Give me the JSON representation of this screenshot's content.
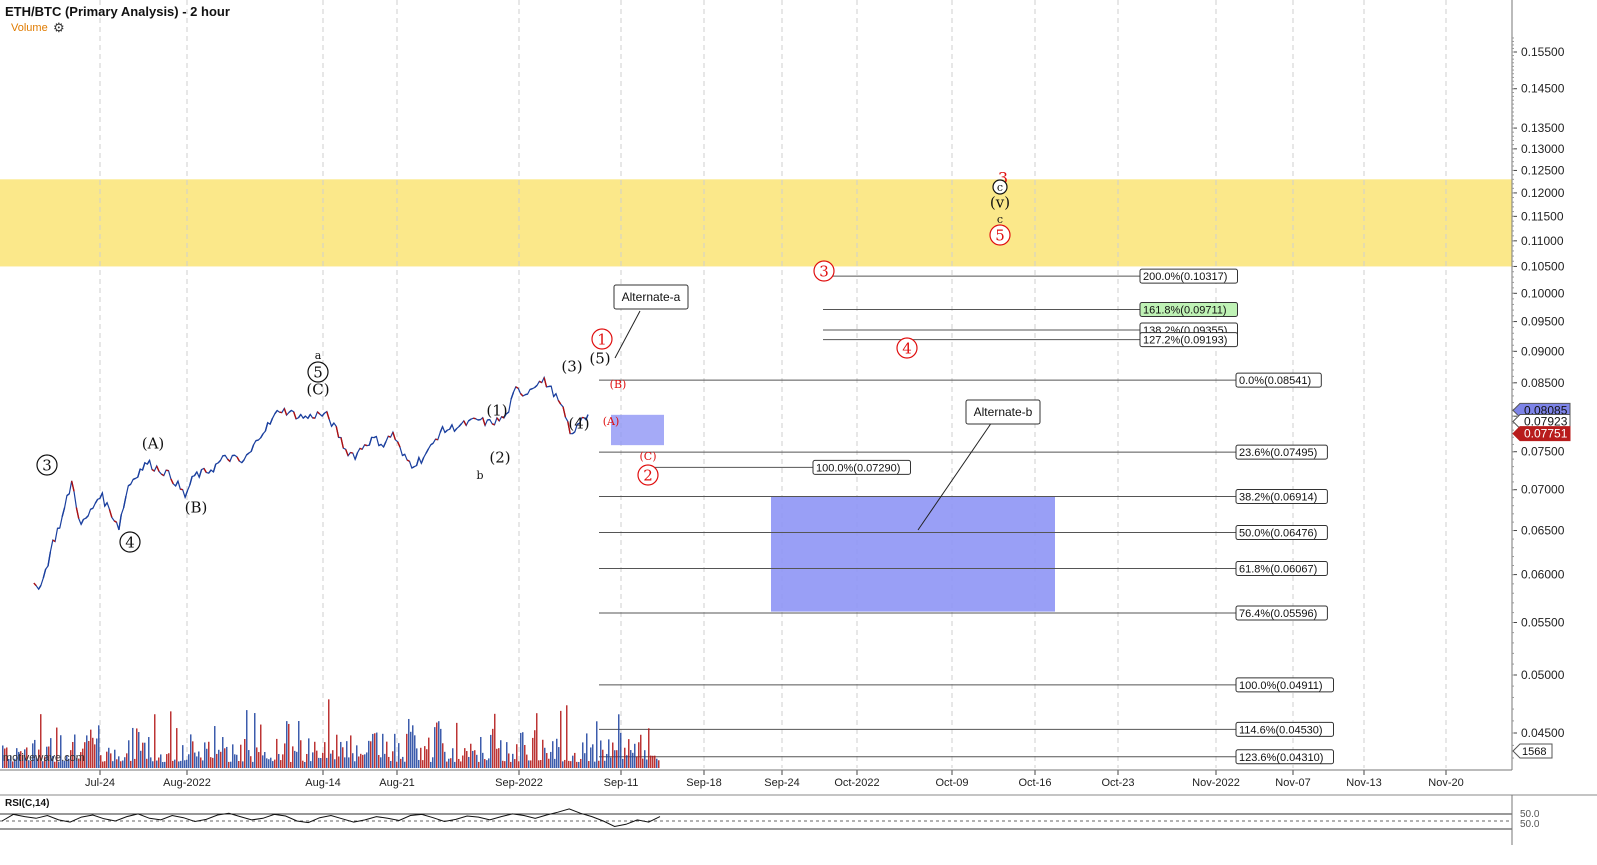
{
  "title": "ETH/BTC (Primary Analysis) - 2 hour",
  "volume_label": "Volume",
  "gear_icon": "gear-icon",
  "watermark": "motivewave.com",
  "rsi_label": "RSI(C,14)",
  "colors": {
    "up": "#1a3f9e",
    "down": "#b01010",
    "target_zone": "#fbe88a",
    "box": "#8e95f5",
    "red_label": "#e01010",
    "price_current": "#7d84e8",
    "price_alt1": "#b81c1c"
  },
  "chart_data": {
    "type": "line",
    "title": "ETH/BTC (Primary Analysis) - 2 hour",
    "ylabel": "",
    "xlabel": "",
    "log_scale": true,
    "ylim": [
      0.0425,
      0.165
    ],
    "x_ticks": [
      "Jul-24",
      "Aug-2022",
      "Aug-14",
      "Aug-21",
      "Sep-2022",
      "Sep-11",
      "Sep-18",
      "Sep-24",
      "Oct-2022",
      "Oct-09",
      "Oct-16",
      "Oct-23",
      "Nov-2022",
      "Nov-07",
      "Nov-13",
      "Nov-20"
    ],
    "y_ticks": [
      "0.15500",
      "0.14500",
      "0.13500",
      "0.13000",
      "0.12500",
      "0.12000",
      "0.11500",
      "0.11000",
      "0.10500",
      "0.10000",
      "0.09500",
      "0.09000",
      "0.08500",
      "0.08000",
      "0.07500",
      "0.07000",
      "0.06500",
      "0.06000",
      "0.05500",
      "0.05000",
      "0.04500"
    ],
    "price_markers": [
      {
        "label": "0.08085",
        "value": 0.08085,
        "kind": "current"
      },
      {
        "label": "0.07923",
        "value": 0.07923,
        "kind": "plain"
      },
      {
        "label": "0.07751",
        "value": 0.07751,
        "kind": "alt"
      }
    ],
    "vol_scale_label": "1568",
    "series": [
      {
        "x": [
          "07-17",
          "07-18",
          "07-19",
          "07-20",
          "07-21",
          "07-22",
          "07-23",
          "07-24",
          "07-25",
          "07-26",
          "07-27",
          "07-28",
          "07-29",
          "07-30",
          "07-31",
          "08-01",
          "08-02",
          "08-03",
          "08-04",
          "08-05",
          "08-06",
          "08-07",
          "08-08",
          "08-09",
          "08-10",
          "08-11",
          "08-12",
          "08-13",
          "08-14",
          "08-15",
          "08-16",
          "08-17",
          "08-18",
          "08-19",
          "08-20",
          "08-21",
          "08-22",
          "08-23",
          "08-24",
          "08-25",
          "08-26",
          "08-27",
          "08-28",
          "08-29",
          "08-30",
          "08-31",
          "09-01",
          "09-02",
          "09-03",
          "09-04",
          "09-05",
          "09-06",
          "09-07",
          "09-08",
          "09-09",
          "09-10",
          "09-11",
          "09-12",
          "09-13"
        ],
        "y": [
          0.0585,
          0.0595,
          0.0635,
          0.0665,
          0.071,
          0.0655,
          0.0672,
          0.0695,
          0.0675,
          0.0655,
          0.0705,
          0.0722,
          0.0735,
          0.0728,
          0.0722,
          0.071,
          0.0692,
          0.0718,
          0.0722,
          0.0728,
          0.074,
          0.0742,
          0.0735,
          0.075,
          0.0775,
          0.079,
          0.081,
          0.0806,
          0.08,
          0.0798,
          0.0803,
          0.0801,
          0.078,
          0.0752,
          0.0745,
          0.076,
          0.0768,
          0.076,
          0.0776,
          0.0745,
          0.0733,
          0.074,
          0.0755,
          0.0778,
          0.0782,
          0.0786,
          0.079,
          0.0795,
          0.079,
          0.0793,
          0.08,
          0.084,
          0.0833,
          0.0848,
          0.0853,
          0.0835,
          0.0808,
          0.077,
          0.08
        ]
      }
    ]
  },
  "zones": {
    "target": {
      "from": 0.105,
      "to": 0.123
    },
    "small_box": {
      "from": 0.0759,
      "to": 0.0802
    },
    "big_box": {
      "from": 0.0561,
      "to": 0.0691
    }
  },
  "fib_lines": [
    {
      "label": "200.0%(0.10317)",
      "value": 0.10317,
      "tone": "plain"
    },
    {
      "label": "161.8%(0.09711)",
      "value": 0.09711,
      "tone": "green"
    },
    {
      "label": "138.2%(0.09355)",
      "value": 0.09355,
      "tone": "plain"
    },
    {
      "label": "127.2%(0.09193)",
      "value": 0.09193,
      "tone": "plain"
    },
    {
      "label": "0.0%(0.08541)",
      "value": 0.08541,
      "tone": "plain"
    },
    {
      "label": "23.6%(0.07495)",
      "value": 0.07495,
      "tone": "plain"
    },
    {
      "label": "100.0%(0.07290)",
      "value": 0.0729,
      "tone": "plain"
    },
    {
      "label": "38.2%(0.06914)",
      "value": 0.06914,
      "tone": "plain"
    },
    {
      "label": "50.0%(0.06476)",
      "value": 0.06476,
      "tone": "plain"
    },
    {
      "label": "61.8%(0.06067)",
      "value": 0.06067,
      "tone": "plain"
    },
    {
      "label": "76.4%(0.05596)",
      "value": 0.05596,
      "tone": "plain"
    },
    {
      "label": "100.0%(0.04911)",
      "value": 0.04911,
      "tone": "plain"
    },
    {
      "label": "114.6%(0.04530)",
      "value": 0.0453,
      "tone": "plain"
    },
    {
      "label": "123.6%(0.04310)",
      "value": 0.0431,
      "tone": "plain"
    }
  ],
  "callouts": [
    {
      "label": "Alternate-a"
    },
    {
      "label": "Alternate-b"
    }
  ],
  "wave_labels": [
    {
      "text": "3",
      "style": "circle",
      "color": "black"
    },
    {
      "text": "4",
      "style": "circle",
      "color": "black"
    },
    {
      "text": "(A)",
      "style": "plain",
      "color": "black"
    },
    {
      "text": "(B)",
      "style": "plain",
      "color": "black"
    },
    {
      "text": "a",
      "style": "small",
      "color": "black"
    },
    {
      "text": "5",
      "style": "circle",
      "color": "black"
    },
    {
      "text": "(C)",
      "style": "plain",
      "color": "black"
    },
    {
      "text": "(1)",
      "style": "plain",
      "color": "black"
    },
    {
      "text": "(2)",
      "style": "plain",
      "color": "black"
    },
    {
      "text": "b",
      "style": "small",
      "color": "black"
    },
    {
      "text": "(3)",
      "style": "plain",
      "color": "black"
    },
    {
      "text": "(4)",
      "style": "plain",
      "color": "black"
    },
    {
      "text": "(5)",
      "style": "plain",
      "color": "black"
    },
    {
      "text": "1",
      "style": "circle",
      "color": "red"
    },
    {
      "text": "(B)",
      "style": "small",
      "color": "red"
    },
    {
      "text": "(A)",
      "style": "small",
      "color": "red"
    },
    {
      "text": "(C)",
      "style": "small",
      "color": "red"
    },
    {
      "text": "2",
      "style": "circle",
      "color": "red"
    },
    {
      "text": "3",
      "style": "circle",
      "color": "red"
    },
    {
      "text": "4",
      "style": "circle",
      "color": "red"
    },
    {
      "text": "3",
      "style": "big",
      "color": "red"
    },
    {
      "text": "c",
      "style": "circle",
      "color": "black"
    },
    {
      "text": "(v)",
      "style": "plain",
      "color": "black"
    },
    {
      "text": "c",
      "style": "small",
      "color": "black"
    },
    {
      "text": "5",
      "style": "circle",
      "color": "red"
    }
  ],
  "rsi": {
    "scale_labels": [
      "50.0",
      "50.0"
    ],
    "values": [
      50,
      62,
      58,
      55,
      60,
      52,
      48,
      57,
      61,
      54,
      50,
      58,
      63,
      55,
      52,
      60,
      56,
      49,
      53,
      61,
      64,
      58,
      52,
      55,
      62,
      59,
      50,
      47,
      56,
      60,
      54,
      48,
      52,
      58,
      55,
      51,
      60,
      62,
      56,
      49,
      53,
      59,
      57,
      52,
      58,
      63,
      60,
      55,
      61,
      66,
      72,
      64,
      58,
      50,
      40,
      44,
      52,
      48,
      58
    ]
  }
}
